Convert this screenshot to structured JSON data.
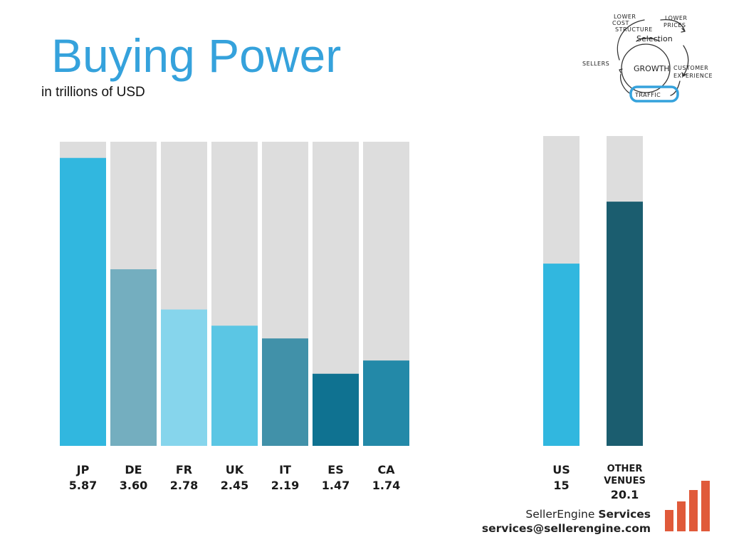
{
  "title": "Buying Power",
  "subtitle": "in trillions of USD",
  "chart_data": [
    {
      "type": "bar",
      "categories": [
        "JP",
        "DE",
        "FR",
        "UK",
        "IT",
        "ES",
        "CA"
      ],
      "values": [
        5.87,
        3.6,
        2.78,
        2.45,
        2.19,
        1.47,
        1.74
      ],
      "value_labels": [
        "5.87",
        "3.60",
        "2.78",
        "2.45",
        "2.19",
        "1.47",
        "1.74"
      ],
      "ylim": [
        0,
        6.2
      ],
      "colors": [
        "#31b7df",
        "#74aebf",
        "#86d5ec",
        "#5bc6e4",
        "#4191a9",
        "#0f7291",
        "#2389a8"
      ],
      "background_bar_color": "#dddddd",
      "grid": false
    },
    {
      "type": "bar",
      "categories": [
        "US",
        "OTHER VENUES"
      ],
      "values": [
        15,
        20.1
      ],
      "value_labels": [
        "15",
        "20.1"
      ],
      "ylim": [
        0,
        25.5
      ],
      "colors": [
        "#31b7df",
        "#1b5d6f"
      ],
      "background_bar_color": "#dddddd",
      "grid": false
    }
  ],
  "flywheel": {
    "labels": {
      "lower_cost": "LOWER",
      "cost": "COST",
      "structure": "STRUCTURE",
      "lower_prices": "LOWER",
      "prices": "PRICES",
      "selection": "Selection",
      "sellers": "SELLERS",
      "growth": "GROWTH",
      "customer": "CUSTOMER",
      "experience": "EXPERIENCE",
      "traffic": "TRAFFIC"
    },
    "highlight_color": "#35a2dc"
  },
  "brand": {
    "name_regular": "SellerEngine ",
    "name_bold": "Services",
    "email": "services@sellerengine.com",
    "logo_color": "#e05a3a"
  }
}
